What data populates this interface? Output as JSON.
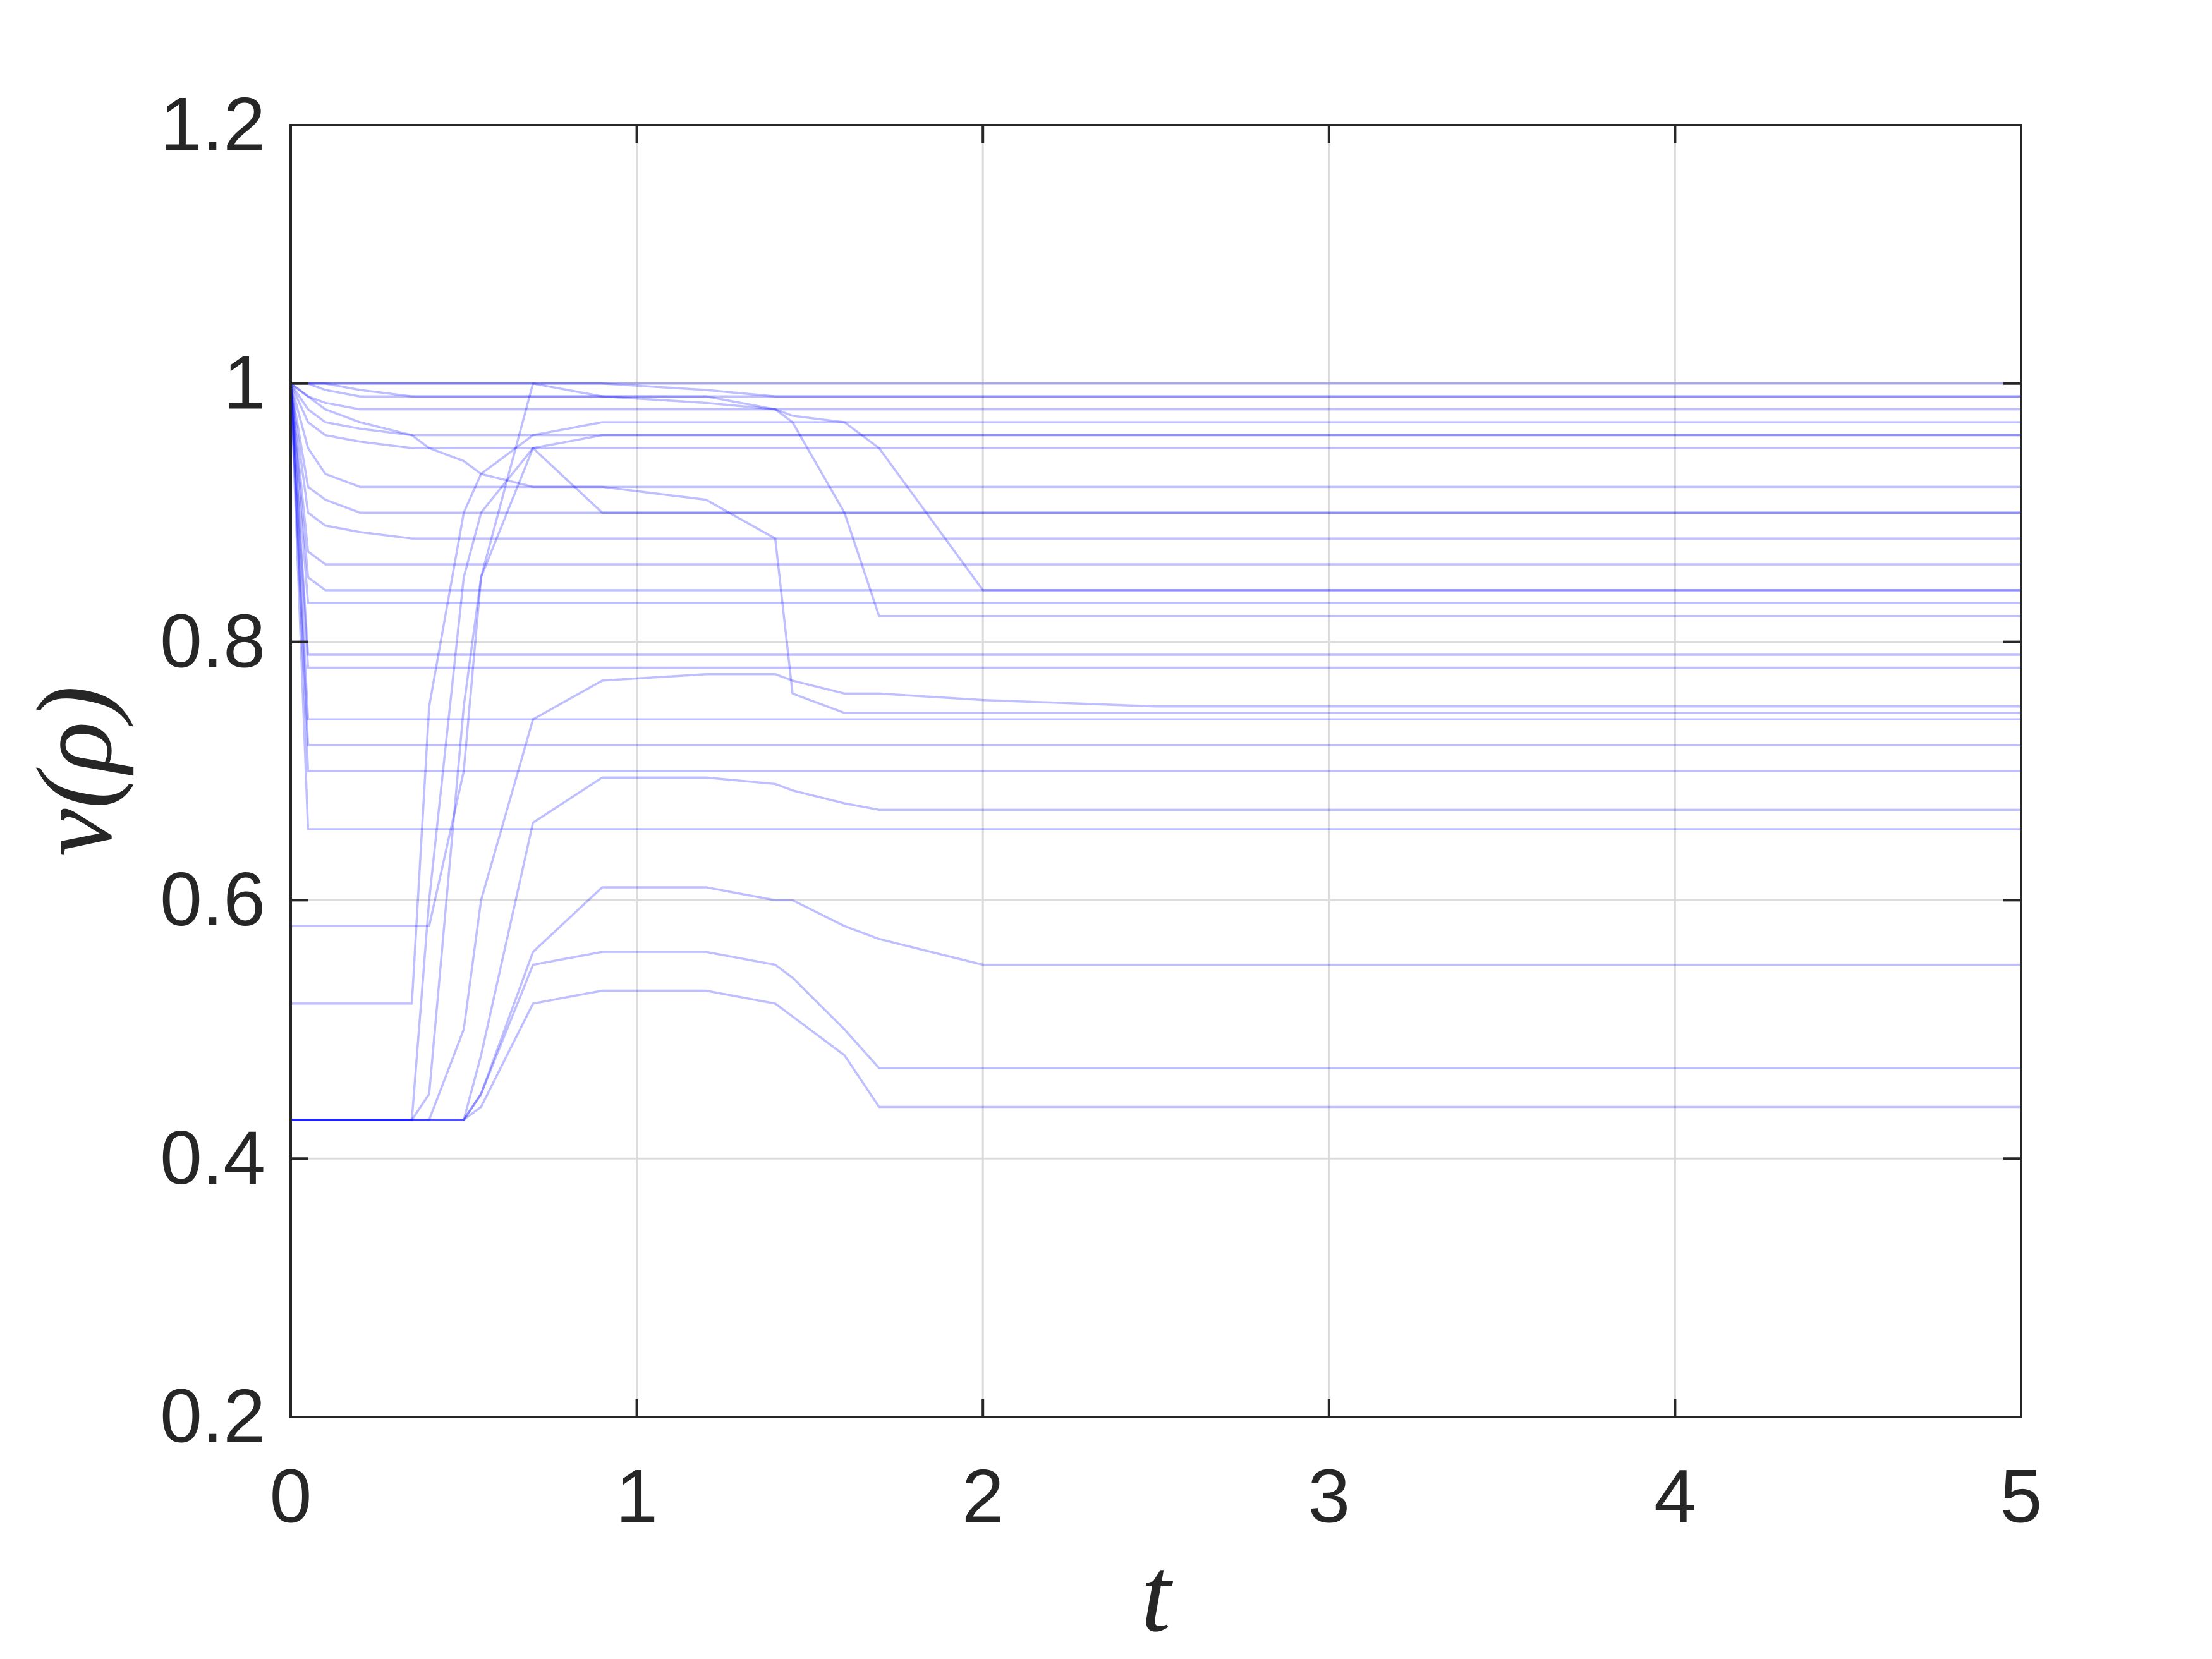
{
  "chart_data": {
    "type": "line",
    "xlabel": "t",
    "ylabel": "v(ρ)",
    "x": [
      0,
      0.05,
      0.1,
      0.2,
      0.35,
      0.4,
      0.5,
      0.55,
      0.7,
      0.9,
      1.2,
      1.4,
      1.45,
      1.6,
      1.7,
      2.0,
      2.5,
      5
    ],
    "color": "#0000ff",
    "series": [
      {
        "values": [
          1,
          1,
          1,
          1,
          1,
          1,
          1,
          1,
          1,
          1,
          1,
          1,
          1,
          1,
          1,
          1,
          1,
          1
        ]
      },
      {
        "values": [
          1,
          1,
          1,
          1,
          1,
          1,
          1,
          1,
          1,
          1,
          0.995,
          0.99,
          0.99,
          0.99,
          0.99,
          0.99,
          0.99,
          0.99
        ]
      },
      {
        "values": [
          1,
          0.99,
          0.985,
          0.98,
          0.98,
          0.98,
          0.98,
          0.98,
          0.98,
          0.98,
          0.98,
          0.98,
          0.98,
          0.98,
          0.98,
          0.98,
          0.98,
          0.98
        ]
      },
      {
        "values": [
          1,
          0.98,
          0.97,
          0.965,
          0.96,
          0.96,
          0.96,
          0.96,
          0.96,
          0.96,
          0.96,
          0.96,
          0.96,
          0.96,
          0.96,
          0.96,
          0.96,
          0.96
        ]
      },
      {
        "values": [
          1,
          0.97,
          0.96,
          0.955,
          0.95,
          0.95,
          0.95,
          0.95,
          0.95,
          0.95,
          0.95,
          0.95,
          0.95,
          0.95,
          0.95,
          0.95,
          0.95,
          0.95
        ]
      },
      {
        "values": [
          1,
          1,
          1,
          0.995,
          0.99,
          0.99,
          0.99,
          0.99,
          0.99,
          0.99,
          0.99,
          0.98,
          0.975,
          0.97,
          0.95,
          0.84,
          0.84,
          0.84
        ]
      },
      {
        "values": [
          1,
          1,
          0.995,
          0.99,
          0.99,
          0.99,
          0.99,
          0.99,
          0.99,
          0.99,
          0.985,
          0.98,
          0.97,
          0.9,
          0.82,
          0.82,
          0.82,
          0.82
        ]
      },
      {
        "values": [
          1,
          0.95,
          0.93,
          0.92,
          0.92,
          0.92,
          0.92,
          0.92,
          0.92,
          0.92,
          0.92,
          0.92,
          0.92,
          0.92,
          0.92,
          0.92,
          0.92,
          0.92
        ]
      },
      {
        "values": [
          1,
          0.92,
          0.91,
          0.9,
          0.9,
          0.9,
          0.9,
          0.9,
          0.9,
          0.9,
          0.9,
          0.9,
          0.9,
          0.9,
          0.9,
          0.9,
          0.9,
          0.9
        ]
      },
      {
        "values": [
          1,
          0.9,
          0.89,
          0.885,
          0.88,
          0.88,
          0.88,
          0.88,
          0.88,
          0.88,
          0.88,
          0.88,
          0.88,
          0.88,
          0.88,
          0.88,
          0.88,
          0.88
        ]
      },
      {
        "values": [
          1,
          0.87,
          0.86,
          0.86,
          0.86,
          0.86,
          0.86,
          0.86,
          0.86,
          0.86,
          0.86,
          0.86,
          0.86,
          0.86,
          0.86,
          0.86,
          0.86,
          0.86
        ]
      },
      {
        "values": [
          1,
          0.85,
          0.84,
          0.84,
          0.84,
          0.84,
          0.84,
          0.84,
          0.84,
          0.84,
          0.84,
          0.84,
          0.84,
          0.84,
          0.84,
          0.84,
          0.84,
          0.84
        ]
      },
      {
        "values": [
          1,
          0.83,
          0.83,
          0.83,
          0.83,
          0.83,
          0.83,
          0.83,
          0.83,
          0.83,
          0.83,
          0.83,
          0.83,
          0.83,
          0.83,
          0.83,
          0.83,
          0.83
        ]
      },
      {
        "values": [
          1,
          0.79,
          0.79,
          0.79,
          0.79,
          0.79,
          0.79,
          0.79,
          0.79,
          0.79,
          0.79,
          0.79,
          0.79,
          0.79,
          0.79,
          0.79,
          0.79,
          0.79
        ]
      },
      {
        "values": [
          1,
          0.78,
          0.78,
          0.78,
          0.78,
          0.78,
          0.78,
          0.78,
          0.78,
          0.78,
          0.78,
          0.78,
          0.78,
          0.78,
          0.78,
          0.78,
          0.78,
          0.78
        ]
      },
      {
        "values": [
          1,
          0.74,
          0.74,
          0.74,
          0.74,
          0.74,
          0.74,
          0.74,
          0.74,
          0.74,
          0.74,
          0.74,
          0.74,
          0.74,
          0.74,
          0.74,
          0.74,
          0.74
        ]
      },
      {
        "values": [
          1,
          0.72,
          0.72,
          0.72,
          0.72,
          0.72,
          0.72,
          0.72,
          0.72,
          0.72,
          0.72,
          0.72,
          0.72,
          0.72,
          0.72,
          0.72,
          0.72,
          0.72
        ]
      },
      {
        "values": [
          1,
          0.7,
          0.7,
          0.7,
          0.7,
          0.7,
          0.7,
          0.7,
          0.7,
          0.7,
          0.7,
          0.7,
          0.7,
          0.7,
          0.7,
          0.7,
          0.7,
          0.7
        ]
      },
      {
        "values": [
          1,
          0.99,
          0.98,
          0.97,
          0.96,
          0.95,
          0.94,
          0.93,
          0.92,
          0.92,
          0.91,
          0.88,
          0.76,
          0.745,
          0.745,
          0.745,
          0.745,
          0.745
        ]
      },
      {
        "values": [
          0.43,
          0.43,
          0.43,
          0.43,
          0.43,
          0.6,
          0.85,
          0.9,
          0.95,
          0.9,
          0.9,
          0.9,
          0.9,
          0.9,
          0.9,
          0.9,
          0.9,
          0.9
        ]
      },
      {
        "values": [
          0.43,
          0.43,
          0.43,
          0.43,
          0.43,
          0.45,
          0.75,
          0.85,
          1,
          0.99,
          0.99,
          0.99,
          0.99,
          0.99,
          0.99,
          0.99,
          0.99,
          0.99
        ]
      },
      {
        "values": [
          0.43,
          0.43,
          0.43,
          0.43,
          0.43,
          0.43,
          0.5,
          0.6,
          0.74,
          0.77,
          0.775,
          0.775,
          0.77,
          0.76,
          0.76,
          0.755,
          0.75,
          0.75
        ]
      },
      {
        "values": [
          0.43,
          0.43,
          0.43,
          0.43,
          0.43,
          0.43,
          0.43,
          0.48,
          0.66,
          0.695,
          0.695,
          0.69,
          0.685,
          0.675,
          0.67,
          0.67,
          0.67,
          0.67
        ]
      },
      {
        "values": [
          0.43,
          0.43,
          0.43,
          0.43,
          0.43,
          0.43,
          0.43,
          0.45,
          0.56,
          0.61,
          0.61,
          0.6,
          0.6,
          0.58,
          0.57,
          0.55,
          0.55,
          0.55
        ]
      },
      {
        "values": [
          0.43,
          0.43,
          0.43,
          0.43,
          0.43,
          0.43,
          0.43,
          0.44,
          0.52,
          0.53,
          0.53,
          0.52,
          0.51,
          0.48,
          0.44,
          0.44,
          0.44,
          0.44
        ]
      },
      {
        "values": [
          0.43,
          0.43,
          0.43,
          0.43,
          0.43,
          0.43,
          0.43,
          0.45,
          0.55,
          0.56,
          0.56,
          0.55,
          0.54,
          0.5,
          0.47,
          0.47,
          0.47,
          0.47
        ]
      },
      {
        "values": [
          1,
          0.655,
          0.655,
          0.655,
          0.655,
          0.655,
          0.655,
          0.655,
          0.655,
          0.655,
          0.655,
          0.655,
          0.655,
          0.655,
          0.655,
          0.655,
          0.655,
          0.655
        ]
      },
      {
        "values": [
          0.58,
          0.58,
          0.58,
          0.58,
          0.58,
          0.58,
          0.7,
          0.85,
          0.95,
          0.96,
          0.96,
          0.96,
          0.96,
          0.96,
          0.96,
          0.96,
          0.96,
          0.96
        ]
      },
      {
        "values": [
          0.52,
          0.52,
          0.52,
          0.52,
          0.52,
          0.75,
          0.9,
          0.93,
          0.96,
          0.97,
          0.97,
          0.97,
          0.97,
          0.97,
          0.97,
          0.97,
          0.97,
          0.97
        ]
      }
    ],
    "xlim": [
      0,
      5
    ],
    "xticks": [
      0,
      1,
      2,
      3,
      4,
      5
    ],
    "ylim": [
      0.2,
      1.2
    ],
    "yticks": [
      0.2,
      0.4,
      0.6,
      0.8,
      1,
      1.2
    ],
    "grid": true
  }
}
